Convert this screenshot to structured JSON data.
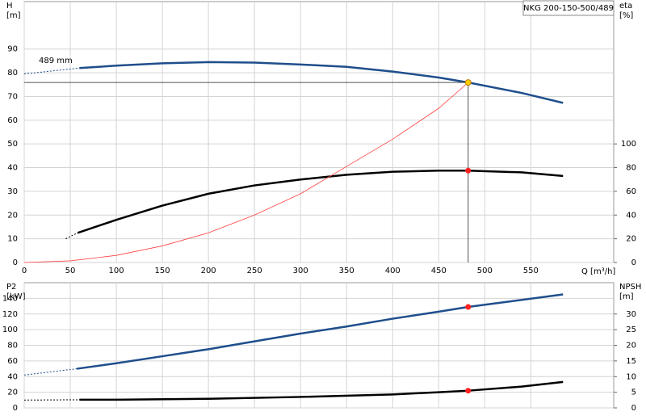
{
  "chart_data": [
    {
      "type": "line",
      "model": "NKG 200-150-500/489",
      "y_label": "H",
      "y_unit": "[m]",
      "y2_label": "eta",
      "y2_unit": "[%]",
      "x_label": "Q [m³/h]",
      "annotation": "489 mm",
      "xlim": [
        0,
        640
      ],
      "xticks": [
        0,
        50,
        100,
        150,
        200,
        250,
        300,
        350,
        400,
        450,
        500,
        550
      ],
      "xtick_labels": true,
      "ylim": [
        0,
        110
      ],
      "yticks": [
        0,
        10,
        20,
        30,
        40,
        50,
        60,
        70,
        80,
        90
      ],
      "y2lim": [
        0,
        220
      ],
      "y2ticks": [
        0,
        20,
        40,
        60,
        80,
        100
      ],
      "grid": true,
      "series": [
        {
          "color": "#1f4e8c",
          "dash": true,
          "x": [
            0,
            60
          ],
          "values": [
            79.5,
            82
          ]
        },
        {
          "color": "#1f4e8c",
          "x": [
            60,
            100,
            150,
            200,
            250,
            300,
            350,
            400,
            450,
            482,
            540,
            585
          ],
          "values": [
            82,
            83,
            84,
            84.5,
            84.3,
            83.5,
            82.5,
            80.5,
            78,
            75.9,
            71.5,
            67.3
          ]
        },
        {
          "color": "#000000",
          "dash": true,
          "axis": "y2",
          "x": [
            45,
            58
          ],
          "values": [
            20,
            25
          ]
        },
        {
          "color": "#000000",
          "axis": "y2",
          "x": [
            58,
            100,
            150,
            200,
            250,
            300,
            350,
            400,
            450,
            482,
            540,
            585
          ],
          "values": [
            25,
            36,
            48,
            58,
            65,
            70,
            74,
            76.5,
            77.5,
            77.5,
            76,
            73
          ]
        },
        {
          "color": "#ff4040",
          "thin": true,
          "x": [
            0,
            50,
            100,
            150,
            200,
            250,
            300,
            350,
            400,
            450,
            482
          ],
          "values": [
            0,
            0.7,
            3,
            7,
            12.5,
            20,
            29,
            40.5,
            52,
            65,
            75.9
          ]
        },
        {
          "color": "#ffcc00",
          "marker": true,
          "guides": true,
          "x": [
            482
          ],
          "values": [
            75.9
          ]
        },
        {
          "color": "#ff2020",
          "marker": true,
          "axis": "y2",
          "x": [
            482
          ],
          "values": [
            77.5
          ]
        }
      ]
    },
    {
      "type": "line",
      "y_label": "P2",
      "y_unit": "[kW]",
      "y2_label": "NPSH",
      "y2_unit": "[m]",
      "xlim": [
        0,
        640
      ],
      "xticks": [
        0,
        50,
        100,
        150,
        200,
        250,
        300,
        350,
        400,
        450,
        500,
        550
      ],
      "xtick_labels": false,
      "ylim": [
        0,
        160
      ],
      "yticks": [
        0,
        20,
        40,
        60,
        80,
        100,
        120,
        140
      ],
      "y2lim": [
        0,
        40
      ],
      "y2ticks": [
        0,
        5,
        10,
        15,
        20,
        25,
        30
      ],
      "grid": true,
      "series": [
        {
          "color": "#1f4e8c",
          "dash": true,
          "x": [
            0,
            57
          ],
          "values": [
            42,
            50
          ]
        },
        {
          "color": "#1f4e8c",
          "x": [
            57,
            100,
            150,
            200,
            250,
            300,
            350,
            400,
            450,
            482,
            585
          ],
          "values": [
            50,
            57,
            66,
            75,
            85,
            95,
            104,
            114,
            123,
            129,
            145
          ]
        },
        {
          "color": "#000000",
          "dash": true,
          "axis": "y2",
          "x": [
            0,
            60
          ],
          "values": [
            2.5,
            2.6
          ]
        },
        {
          "color": "#000000",
          "axis": "y2",
          "x": [
            60,
            100,
            200,
            300,
            400,
            450,
            482,
            540,
            585
          ],
          "values": [
            2.6,
            2.6,
            2.9,
            3.5,
            4.3,
            5,
            5.5,
            6.8,
            8.3
          ]
        },
        {
          "color": "#ff2020",
          "marker": true,
          "x": [
            482
          ],
          "values": [
            129
          ]
        },
        {
          "color": "#ff2020",
          "marker": true,
          "axis": "y2",
          "x": [
            482
          ],
          "values": [
            5.5
          ]
        }
      ]
    }
  ]
}
